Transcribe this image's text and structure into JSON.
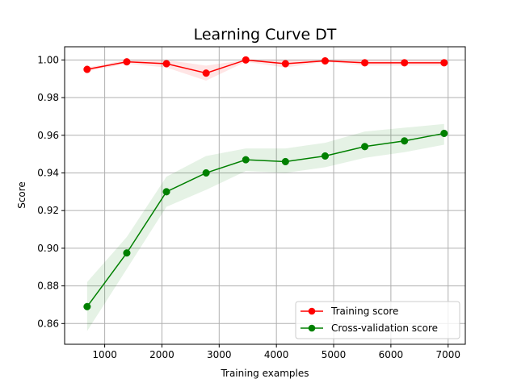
{
  "chart_data": {
    "type": "line",
    "title": "Learning Curve DT",
    "xlabel": "Training examples",
    "ylabel": "Score",
    "xlim": [
      300,
      7300
    ],
    "ylim": [
      0.849,
      1.007
    ],
    "x_ticks": [
      1000,
      2000,
      3000,
      4000,
      5000,
      6000,
      7000
    ],
    "y_ticks": [
      0.86,
      0.88,
      0.9,
      0.92,
      0.94,
      0.96,
      0.98,
      1.0
    ],
    "x_tick_labels": [
      "1000",
      "2000",
      "3000",
      "4000",
      "5000",
      "6000",
      "7000"
    ],
    "y_tick_labels": [
      "0.86",
      "0.88",
      "0.90",
      "0.92",
      "0.94",
      "0.96",
      "0.98",
      "1.00"
    ],
    "grid": true,
    "legend_position": "bottom-right",
    "x": [
      693,
      1386,
      2079,
      2772,
      3465,
      4158,
      4851,
      5544,
      6237,
      6930
    ],
    "series": [
      {
        "name": "Training score",
        "color": "#ff0000",
        "fill_color": "#ff0000",
        "values": [
          0.995,
          0.999,
          0.998,
          0.993,
          1.0,
          0.998,
          0.9995,
          0.9985,
          0.9985,
          0.9985
        ],
        "lower": [
          0.994,
          0.998,
          0.996,
          0.989,
          0.999,
          0.996,
          0.999,
          0.997,
          0.997,
          0.997
        ],
        "upper": [
          0.996,
          1.0,
          1.0,
          0.997,
          1.0,
          1.0,
          1.0,
          1.0,
          1.0,
          1.0
        ]
      },
      {
        "name": "Cross-validation score",
        "color": "#008000",
        "fill_color": "#008000",
        "values": [
          0.869,
          0.8975,
          0.93,
          0.94,
          0.947,
          0.946,
          0.949,
          0.954,
          0.957,
          0.961
        ],
        "lower": [
          0.856,
          0.889,
          0.922,
          0.931,
          0.941,
          0.94,
          0.943,
          0.948,
          0.951,
          0.955
        ],
        "upper": [
          0.882,
          0.906,
          0.938,
          0.949,
          0.953,
          0.953,
          0.956,
          0.962,
          0.964,
          0.966
        ]
      }
    ]
  }
}
